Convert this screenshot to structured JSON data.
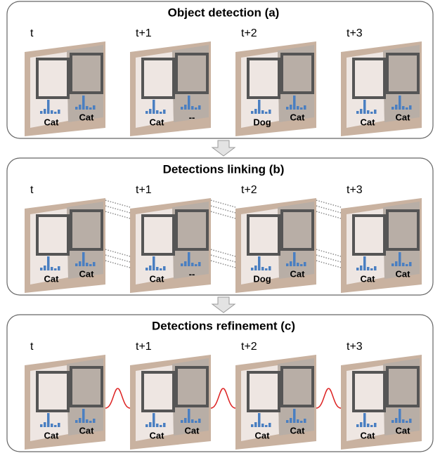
{
  "panels": [
    {
      "title": "Object detection (a)",
      "frames": [
        {
          "time": "t",
          "labels": [
            "Cat",
            "Cat"
          ]
        },
        {
          "time": "t+1",
          "labels": [
            "Cat",
            "--"
          ]
        },
        {
          "time": "t+2",
          "labels": [
            "Dog",
            "Cat"
          ]
        },
        {
          "time": "t+3",
          "labels": [
            "Cat",
            "Cat"
          ]
        }
      ]
    },
    {
      "title": "Detections linking (b)",
      "frames": [
        {
          "time": "t",
          "labels": [
            "Cat",
            "Cat"
          ]
        },
        {
          "time": "t+1",
          "labels": [
            "Cat",
            "--"
          ]
        },
        {
          "time": "t+2",
          "labels": [
            "Dog",
            "Cat"
          ]
        },
        {
          "time": "t+3",
          "labels": [
            "Cat",
            "Cat"
          ]
        }
      ]
    },
    {
      "title": "Detections refinement (c)",
      "frames": [
        {
          "time": "t",
          "labels": [
            "Cat",
            "Cat"
          ]
        },
        {
          "time": "t+1",
          "labels": [
            "Cat",
            "Cat"
          ]
        },
        {
          "time": "t+2",
          "labels": [
            "Cat",
            "Cat"
          ]
        },
        {
          "time": "t+3",
          "labels": [
            "Cat",
            "Cat"
          ]
        }
      ]
    }
  ]
}
